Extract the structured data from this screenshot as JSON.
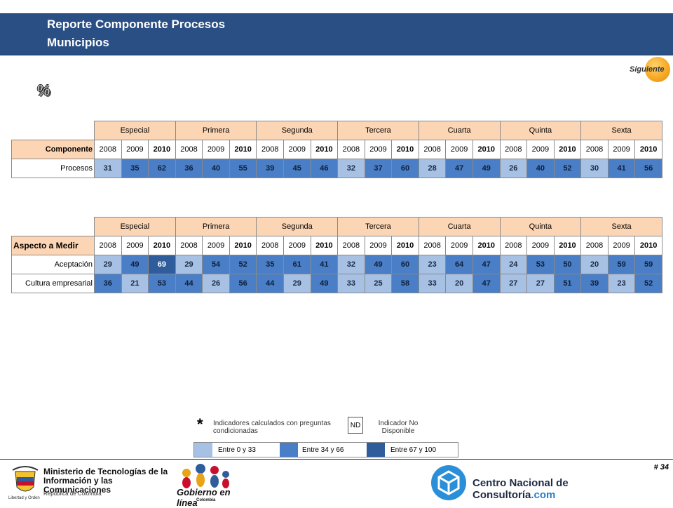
{
  "header": {
    "title_line1": "Reporte Componente  Procesos",
    "title_line2": "Municipios"
  },
  "nav": {
    "next_label": "Siguiente"
  },
  "symbol": "%",
  "groups": [
    "Especial",
    "Primera",
    "Segunda",
    "Tercera",
    "Cuarta",
    "Quinta",
    "Sexta"
  ],
  "years": [
    "2008",
    "2009",
    "2010"
  ],
  "table1": {
    "row_header": "Componente",
    "rows": [
      {
        "label": "Procesos",
        "values": [
          31,
          35,
          62,
          36,
          40,
          55,
          39,
          45,
          46,
          32,
          37,
          60,
          28,
          47,
          49,
          26,
          40,
          52,
          30,
          41,
          56
        ]
      }
    ]
  },
  "table2": {
    "row_header": "Aspecto a Medir",
    "rows": [
      {
        "label": "Aceptación",
        "values": [
          29,
          49,
          69,
          29,
          54,
          52,
          35,
          61,
          41,
          32,
          49,
          60,
          23,
          64,
          47,
          24,
          53,
          50,
          20,
          59,
          59
        ]
      },
      {
        "label": "Cultura empresarial",
        "values": [
          36,
          21,
          53,
          44,
          26,
          56,
          44,
          29,
          49,
          33,
          25,
          58,
          33,
          20,
          47,
          27,
          27,
          51,
          39,
          23,
          52
        ]
      }
    ]
  },
  "legend": {
    "star": "*",
    "conditional_text": "Indicadores calculados con preguntas condicionadas",
    "nd_code": "ND",
    "nd_text": "Indicador No Disponible",
    "ranges": [
      "Entre 0 y 33",
      "Entre 34 y 66",
      "Entre 67 y 100"
    ],
    "colors": [
      "#a7c1e4",
      "#4a7ec6",
      "#2f5d9c"
    ]
  },
  "footer": {
    "page_number": "# 34",
    "ministry_line1": "Ministerio de Tecnologías de la",
    "ministry_line2": "Información y las Comunicaciones",
    "ministry_country": "República de Colombia",
    "ministry_motto": "Libertad y Orden",
    "gel_name": "Gobierno en línea",
    "gel_country": "Colombia",
    "cnc_name": "Centro Nacional de Consultoría",
    "cnc_suffix": ".com"
  }
}
